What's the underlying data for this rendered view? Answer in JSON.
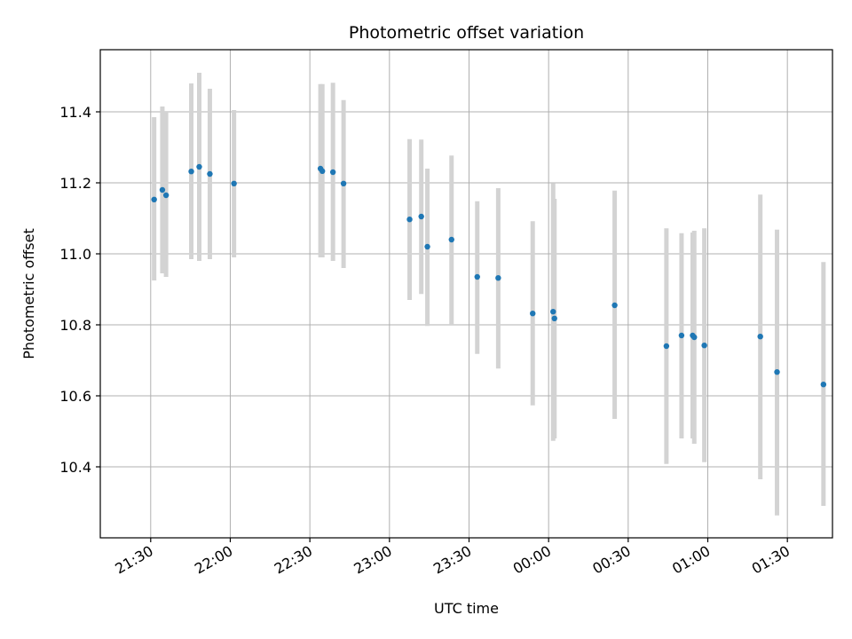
{
  "chart_data": {
    "type": "scatter",
    "title": "Photometric offset variation",
    "xlabel": "UTC time",
    "ylabel": "Photometric offset",
    "x_range_minutes": [
      1271,
      1547
    ],
    "ylim": [
      10.2,
      11.575
    ],
    "x_ticks": [
      {
        "label": "21:30",
        "minute": 1290
      },
      {
        "label": "22:00",
        "minute": 1320
      },
      {
        "label": "22:30",
        "minute": 1350
      },
      {
        "label": "23:00",
        "minute": 1380
      },
      {
        "label": "23:30",
        "minute": 1410
      },
      {
        "label": "00:00",
        "minute": 1440
      },
      {
        "label": "00:30",
        "minute": 1470
      },
      {
        "label": "01:00",
        "minute": 1500
      },
      {
        "label": "01:30",
        "minute": 1530
      }
    ],
    "y_ticks": [
      10.4,
      10.6,
      10.8,
      11.0,
      11.2,
      11.4
    ],
    "grid": true,
    "marker_color": "#1f77b4",
    "errorbar_color": "#d3d3d3",
    "points": [
      {
        "minute": 1291.3,
        "y": 11.153,
        "err_low": 10.925,
        "err_high": 11.385
      },
      {
        "minute": 1294.4,
        "y": 11.18,
        "err_low": 10.945,
        "err_high": 11.415
      },
      {
        "minute": 1295.8,
        "y": 11.165,
        "err_low": 10.935,
        "err_high": 11.4
      },
      {
        "minute": 1305.3,
        "y": 11.232,
        "err_low": 10.985,
        "err_high": 11.48
      },
      {
        "minute": 1308.3,
        "y": 11.245,
        "err_low": 10.98,
        "err_high": 11.51
      },
      {
        "minute": 1312.3,
        "y": 11.225,
        "err_low": 10.985,
        "err_high": 11.465
      },
      {
        "minute": 1321.4,
        "y": 11.198,
        "err_low": 10.99,
        "err_high": 11.405
      },
      {
        "minute": 1354.0,
        "y": 11.24,
        "err_low": 10.99,
        "err_high": 11.478
      },
      {
        "minute": 1354.7,
        "y": 11.233,
        "err_low": 10.99,
        "err_high": 11.478
      },
      {
        "minute": 1358.7,
        "y": 11.23,
        "err_low": 10.98,
        "err_high": 11.482
      },
      {
        "minute": 1362.7,
        "y": 11.198,
        "err_low": 10.96,
        "err_high": 11.433
      },
      {
        "minute": 1387.6,
        "y": 11.097,
        "err_low": 10.87,
        "err_high": 11.323
      },
      {
        "minute": 1392.0,
        "y": 11.105,
        "err_low": 10.887,
        "err_high": 11.322
      },
      {
        "minute": 1394.3,
        "y": 11.02,
        "err_low": 10.797,
        "err_high": 11.24
      },
      {
        "minute": 1403.4,
        "y": 11.04,
        "err_low": 10.8,
        "err_high": 11.277
      },
      {
        "minute": 1413.1,
        "y": 10.935,
        "err_low": 10.718,
        "err_high": 11.148
      },
      {
        "minute": 1421.0,
        "y": 10.932,
        "err_low": 10.677,
        "err_high": 11.185
      },
      {
        "minute": 1434.0,
        "y": 10.832,
        "err_low": 10.573,
        "err_high": 11.092
      },
      {
        "minute": 1441.7,
        "y": 10.837,
        "err_low": 10.473,
        "err_high": 11.198
      },
      {
        "minute": 1442.2,
        "y": 10.818,
        "err_low": 10.48,
        "err_high": 11.155
      },
      {
        "minute": 1464.9,
        "y": 10.855,
        "err_low": 10.535,
        "err_high": 11.178
      },
      {
        "minute": 1484.4,
        "y": 10.74,
        "err_low": 10.408,
        "err_high": 11.072
      },
      {
        "minute": 1490.1,
        "y": 10.77,
        "err_low": 10.48,
        "err_high": 11.058
      },
      {
        "minute": 1494.3,
        "y": 10.77,
        "err_low": 10.48,
        "err_high": 11.06
      },
      {
        "minute": 1494.9,
        "y": 10.765,
        "err_low": 10.465,
        "err_high": 11.065
      },
      {
        "minute": 1498.7,
        "y": 10.742,
        "err_low": 10.413,
        "err_high": 11.072
      },
      {
        "minute": 1519.8,
        "y": 10.767,
        "err_low": 10.365,
        "err_high": 11.167
      },
      {
        "minute": 1526.1,
        "y": 10.667,
        "err_low": 10.263,
        "err_high": 11.068
      },
      {
        "minute": 1543.6,
        "y": 10.632,
        "err_low": 10.29,
        "err_high": 10.977
      }
    ]
  }
}
